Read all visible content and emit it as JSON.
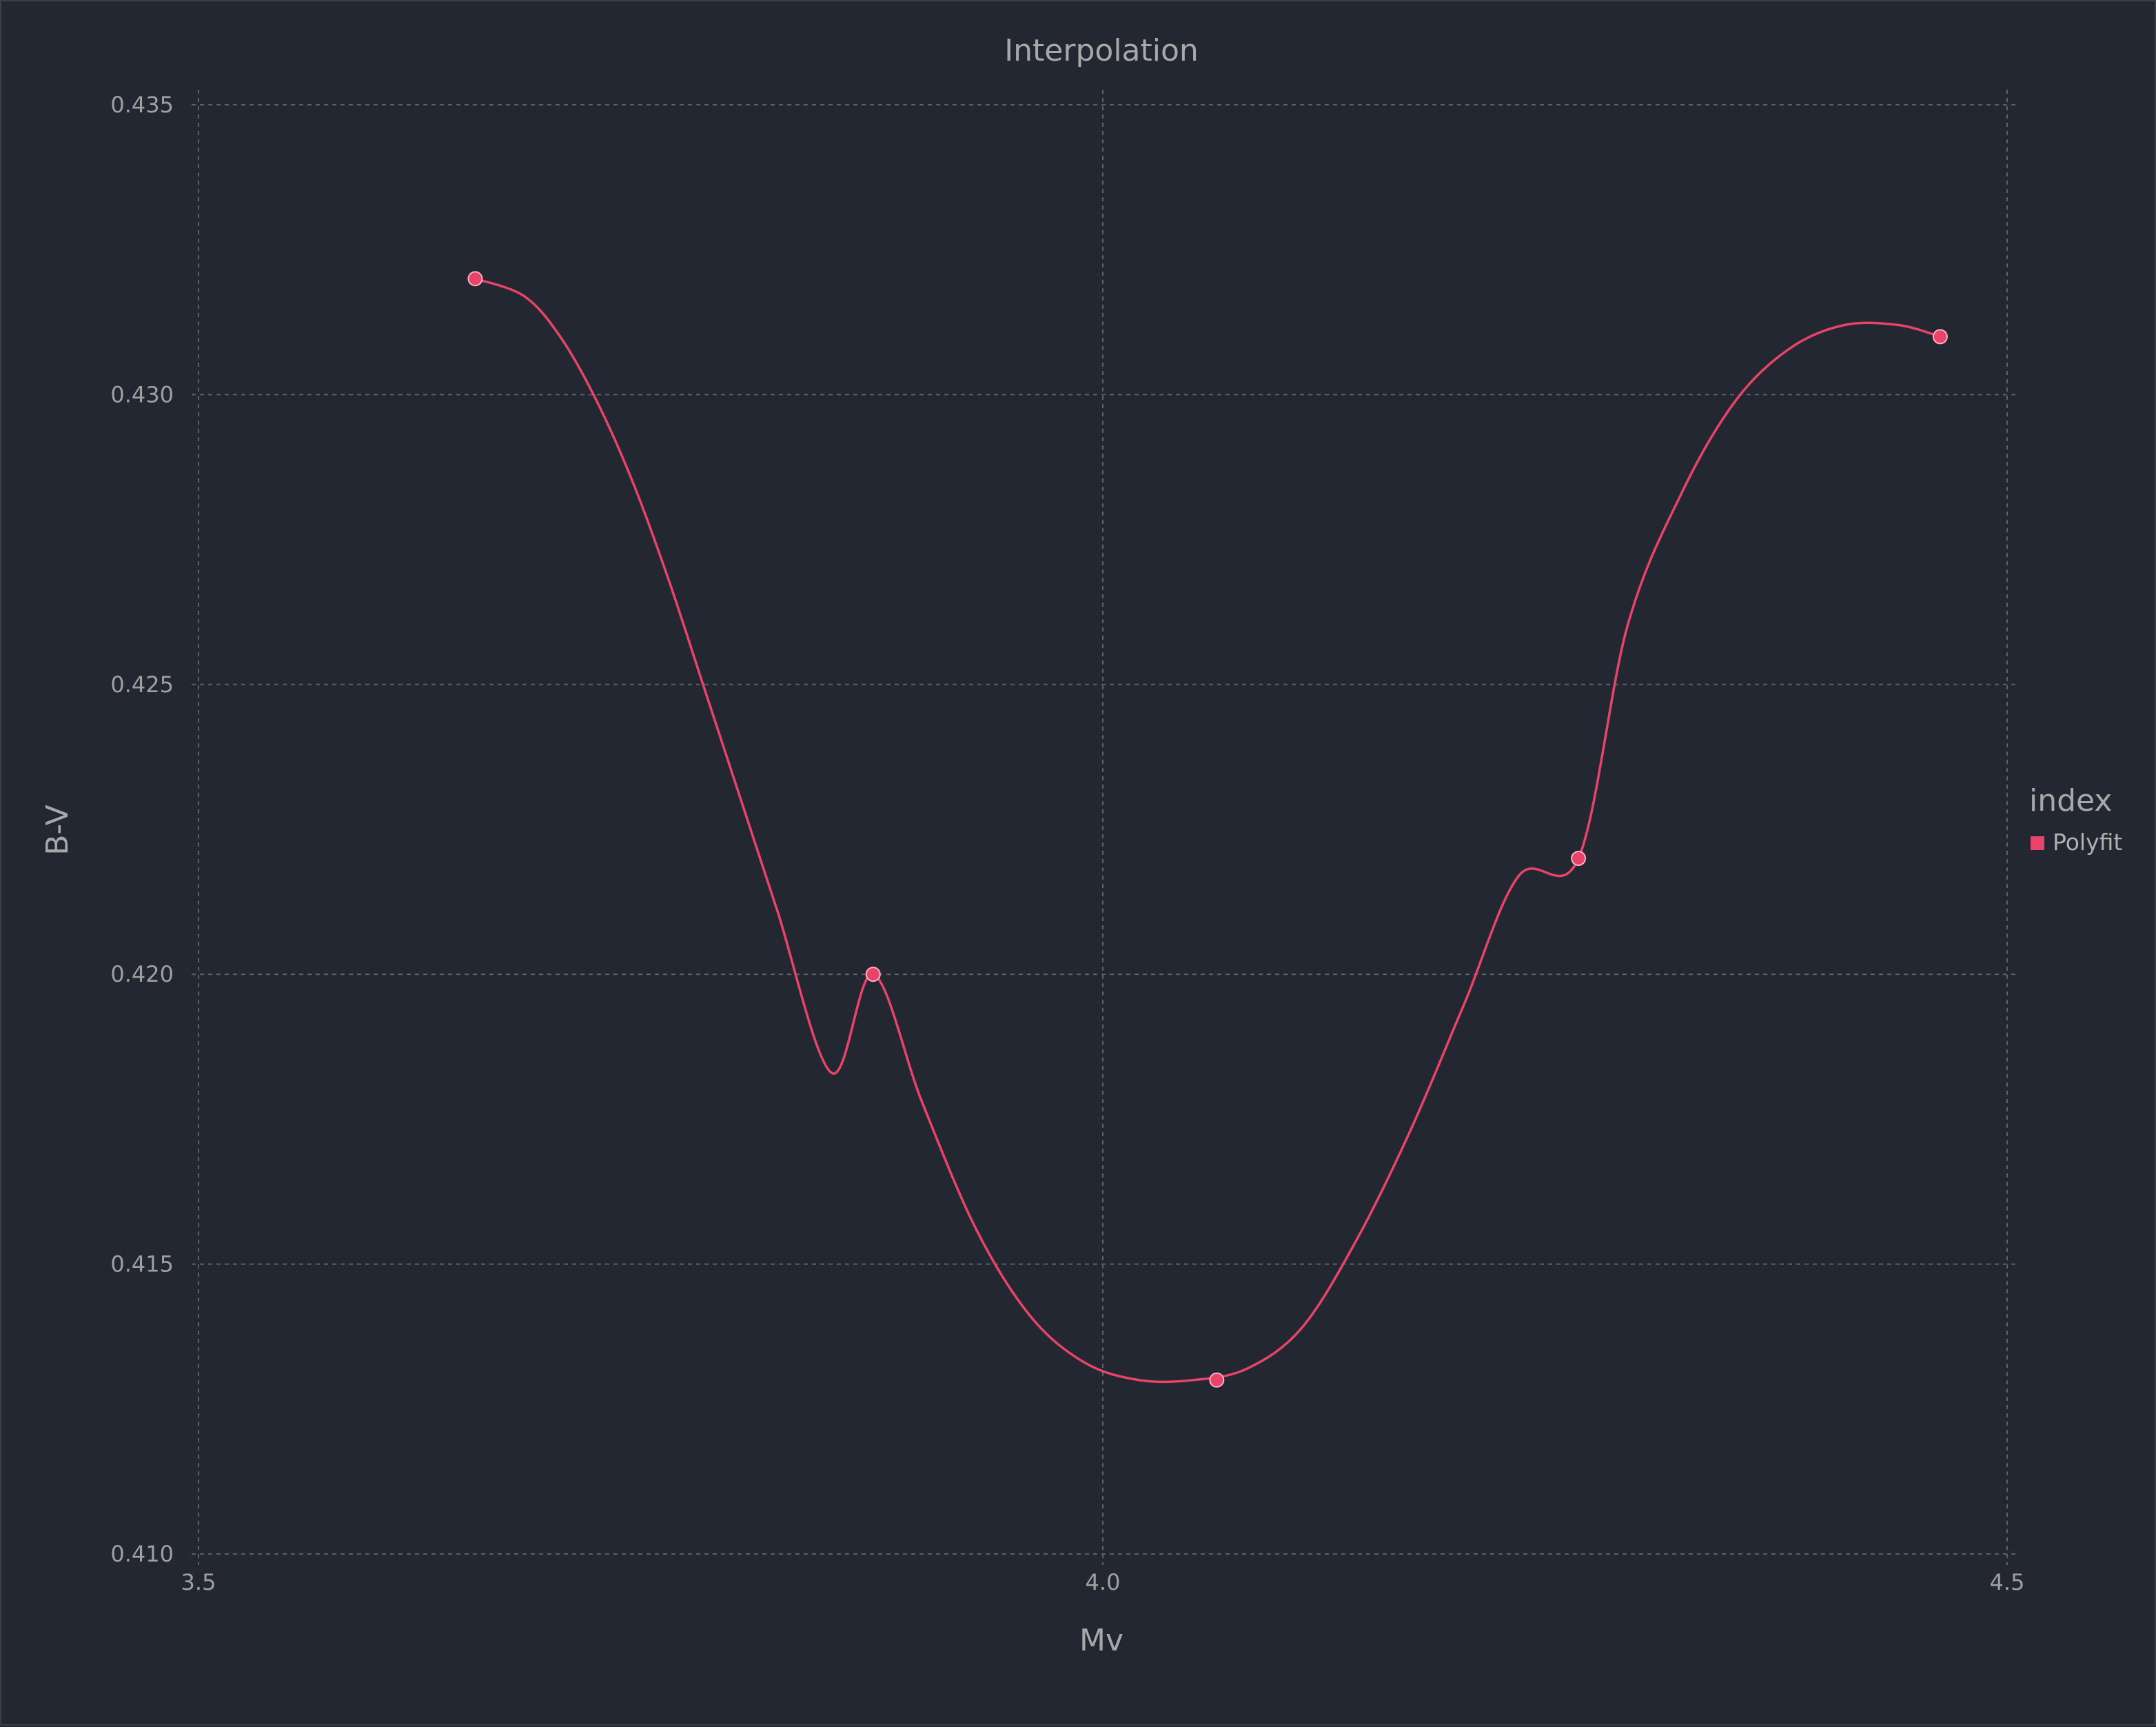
{
  "chart_data": {
    "type": "line",
    "title": "Interpolation",
    "xlabel": "Mv",
    "ylabel": "B-V",
    "xlim": [
      3.5,
      4.5
    ],
    "ylim": [
      0.41,
      0.435
    ],
    "x_ticks": [
      "3.5",
      "4.0",
      "4.5"
    ],
    "y_ticks": [
      "0.410",
      "0.415",
      "0.420",
      "0.425",
      "0.430",
      "0.435"
    ],
    "x_tick_values": [
      3.5,
      4.0,
      4.5
    ],
    "y_tick_values": [
      0.41,
      0.415,
      0.42,
      0.425,
      0.43,
      0.435
    ],
    "grid": true,
    "legend_position": "right",
    "legend": {
      "title": "index",
      "entries": [
        "Polyfit"
      ]
    },
    "series": [
      {
        "name": "Polyfit",
        "color": "#e8446a",
        "points": [
          {
            "x": 3.653,
            "y": 0.432
          },
          {
            "x": 3.873,
            "y": 0.42
          },
          {
            "x": 4.063,
            "y": 0.413
          },
          {
            "x": 4.263,
            "y": 0.422
          },
          {
            "x": 4.463,
            "y": 0.431
          }
        ],
        "curve": [
          {
            "x": 3.653,
            "y": 0.432
          },
          {
            "x": 3.68,
            "y": 0.4317
          },
          {
            "x": 3.7,
            "y": 0.431
          },
          {
            "x": 3.72,
            "y": 0.4299
          },
          {
            "x": 3.74,
            "y": 0.4285
          },
          {
            "x": 3.76,
            "y": 0.4268
          },
          {
            "x": 3.78,
            "y": 0.4249
          },
          {
            "x": 3.8,
            "y": 0.423
          },
          {
            "x": 3.82,
            "y": 0.4211
          },
          {
            "x": 3.85,
            "y": 0.4183
          },
          {
            "x": 3.873,
            "y": 0.42
          },
          {
            "x": 3.9,
            "y": 0.4178
          },
          {
            "x": 3.93,
            "y": 0.4156
          },
          {
            "x": 3.96,
            "y": 0.4141
          },
          {
            "x": 3.99,
            "y": 0.4133
          },
          {
            "x": 4.02,
            "y": 0.413
          },
          {
            "x": 4.05,
            "y": 0.413
          },
          {
            "x": 4.08,
            "y": 0.4132
          },
          {
            "x": 4.11,
            "y": 0.4139
          },
          {
            "x": 4.14,
            "y": 0.4154
          },
          {
            "x": 4.17,
            "y": 0.4173
          },
          {
            "x": 4.2,
            "y": 0.4195
          },
          {
            "x": 4.23,
            "y": 0.4217
          },
          {
            "x": 4.263,
            "y": 0.422
          },
          {
            "x": 4.29,
            "y": 0.426
          },
          {
            "x": 4.32,
            "y": 0.4283
          },
          {
            "x": 4.35,
            "y": 0.4299
          },
          {
            "x": 4.38,
            "y": 0.4308
          },
          {
            "x": 4.41,
            "y": 0.4312
          },
          {
            "x": 4.44,
            "y": 0.4312
          },
          {
            "x": 4.463,
            "y": 0.431
          }
        ]
      }
    ]
  }
}
